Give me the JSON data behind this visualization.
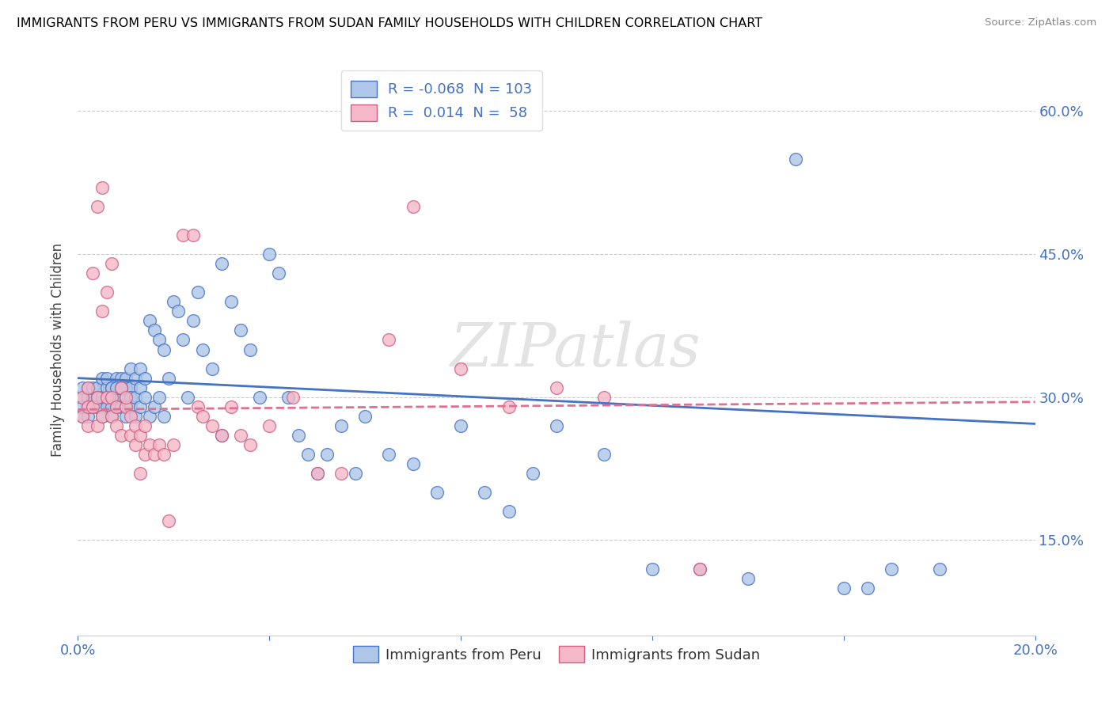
{
  "title": "IMMIGRANTS FROM PERU VS IMMIGRANTS FROM SUDAN FAMILY HOUSEHOLDS WITH CHILDREN CORRELATION CHART",
  "source": "Source: ZipAtlas.com",
  "ylabel": "Family Households with Children",
  "xlim": [
    0.0,
    0.2
  ],
  "ylim": [
    0.05,
    0.65
  ],
  "yticks": [
    0.15,
    0.3,
    0.45,
    0.6
  ],
  "ytick_labels": [
    "15.0%",
    "30.0%",
    "45.0%",
    "60.0%"
  ],
  "xticks": [
    0.0,
    0.04,
    0.08,
    0.12,
    0.16,
    0.2
  ],
  "peru_R": -0.068,
  "peru_N": 103,
  "sudan_R": 0.014,
  "sudan_N": 58,
  "peru_color": "#aec6e8",
  "sudan_color": "#f4b8c8",
  "peru_line_color": "#4472c4",
  "sudan_line_color": "#e07090",
  "legend_peru_label": "Immigrants from Peru",
  "legend_sudan_label": "Immigrants from Sudan",
  "watermark": "ZIPatlas",
  "peru_line_x0": 0.0,
  "peru_line_y0": 0.32,
  "peru_line_x1": 0.2,
  "peru_line_y1": 0.272,
  "sudan_line_x0": 0.0,
  "sudan_line_y0": 0.287,
  "sudan_line_x1": 0.2,
  "sudan_line_y1": 0.295,
  "peru_x": [
    0.001,
    0.001,
    0.001,
    0.001,
    0.002,
    0.002,
    0.002,
    0.002,
    0.003,
    0.003,
    0.003,
    0.004,
    0.004,
    0.004,
    0.005,
    0.005,
    0.005,
    0.006,
    0.006,
    0.006,
    0.006,
    0.007,
    0.007,
    0.007,
    0.007,
    0.008,
    0.008,
    0.008,
    0.008,
    0.009,
    0.009,
    0.009,
    0.009,
    0.01,
    0.01,
    0.01,
    0.01,
    0.01,
    0.011,
    0.011,
    0.011,
    0.011,
    0.012,
    0.012,
    0.012,
    0.013,
    0.013,
    0.013,
    0.014,
    0.014,
    0.015,
    0.015,
    0.016,
    0.016,
    0.017,
    0.017,
    0.018,
    0.018,
    0.019,
    0.02,
    0.021,
    0.022,
    0.023,
    0.024,
    0.025,
    0.026,
    0.028,
    0.03,
    0.03,
    0.032,
    0.034,
    0.036,
    0.038,
    0.04,
    0.042,
    0.044,
    0.046,
    0.048,
    0.05,
    0.052,
    0.055,
    0.058,
    0.06,
    0.065,
    0.07,
    0.075,
    0.08,
    0.085,
    0.09,
    0.095,
    0.1,
    0.11,
    0.12,
    0.13,
    0.14,
    0.15,
    0.16,
    0.165,
    0.17,
    0.18,
    0.007,
    0.008,
    0.009
  ],
  "peru_y": [
    0.28,
    0.3,
    0.31,
    0.29,
    0.3,
    0.29,
    0.31,
    0.28,
    0.3,
    0.31,
    0.29,
    0.31,
    0.3,
    0.29,
    0.3,
    0.32,
    0.28,
    0.29,
    0.31,
    0.3,
    0.32,
    0.3,
    0.29,
    0.31,
    0.28,
    0.3,
    0.32,
    0.29,
    0.31,
    0.32,
    0.3,
    0.29,
    0.31,
    0.3,
    0.32,
    0.31,
    0.29,
    0.28,
    0.31,
    0.33,
    0.3,
    0.29,
    0.32,
    0.3,
    0.28,
    0.31,
    0.29,
    0.33,
    0.3,
    0.32,
    0.38,
    0.28,
    0.37,
    0.29,
    0.36,
    0.3,
    0.35,
    0.28,
    0.32,
    0.4,
    0.39,
    0.36,
    0.3,
    0.38,
    0.41,
    0.35,
    0.33,
    0.44,
    0.26,
    0.4,
    0.37,
    0.35,
    0.3,
    0.45,
    0.43,
    0.3,
    0.26,
    0.24,
    0.22,
    0.24,
    0.27,
    0.22,
    0.28,
    0.24,
    0.23,
    0.2,
    0.27,
    0.2,
    0.18,
    0.22,
    0.27,
    0.24,
    0.12,
    0.12,
    0.11,
    0.55,
    0.1,
    0.1,
    0.12,
    0.12,
    0.31,
    0.31,
    0.31
  ],
  "sudan_x": [
    0.001,
    0.001,
    0.002,
    0.002,
    0.002,
    0.003,
    0.003,
    0.004,
    0.004,
    0.005,
    0.005,
    0.006,
    0.006,
    0.007,
    0.007,
    0.008,
    0.008,
    0.009,
    0.009,
    0.01,
    0.01,
    0.011,
    0.011,
    0.012,
    0.012,
    0.013,
    0.013,
    0.014,
    0.014,
    0.015,
    0.016,
    0.017,
    0.018,
    0.019,
    0.02,
    0.022,
    0.024,
    0.025,
    0.026,
    0.028,
    0.03,
    0.032,
    0.034,
    0.036,
    0.04,
    0.045,
    0.05,
    0.055,
    0.065,
    0.07,
    0.08,
    0.09,
    0.1,
    0.11,
    0.13,
    0.004,
    0.005,
    0.007
  ],
  "sudan_y": [
    0.28,
    0.3,
    0.29,
    0.31,
    0.27,
    0.43,
    0.29,
    0.3,
    0.27,
    0.39,
    0.28,
    0.41,
    0.3,
    0.3,
    0.28,
    0.29,
    0.27,
    0.31,
    0.26,
    0.29,
    0.3,
    0.28,
    0.26,
    0.27,
    0.25,
    0.26,
    0.22,
    0.24,
    0.27,
    0.25,
    0.24,
    0.25,
    0.24,
    0.17,
    0.25,
    0.47,
    0.47,
    0.29,
    0.28,
    0.27,
    0.26,
    0.29,
    0.26,
    0.25,
    0.27,
    0.3,
    0.22,
    0.22,
    0.36,
    0.5,
    0.33,
    0.29,
    0.31,
    0.3,
    0.12,
    0.5,
    0.52,
    0.44
  ]
}
